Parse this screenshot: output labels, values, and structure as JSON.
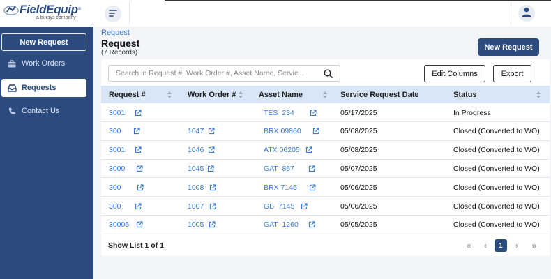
{
  "app": {
    "logo_text": "FieldEquip",
    "logo_reg": "®",
    "logo_sub": "a bursys company"
  },
  "sidebar": {
    "new_request_label": "New Request",
    "items": [
      {
        "label": "Work Orders",
        "icon": "briefcase-icon"
      },
      {
        "label": "Requests",
        "icon": "inbox-icon",
        "active": true
      },
      {
        "label": "Contact Us",
        "icon": "phone-icon"
      }
    ]
  },
  "header": {
    "breadcrumb": "Request",
    "title": "Request",
    "record_count": "(7 Records)",
    "new_request_label": "New Request"
  },
  "toolbar": {
    "search_placeholder": "Search in Request #, Work Order #, Asset Name, Servic...",
    "edit_columns_label": "Edit Columns",
    "export_label": "Export"
  },
  "table": {
    "columns": [
      "Request #",
      "Work Order #",
      "Asset Name",
      "Service Request Date",
      "Status"
    ],
    "rows": [
      {
        "request": "3001",
        "work_order": "",
        "asset": "TES  234",
        "date": "05/17/2025",
        "status": "In Progress"
      },
      {
        "request": "300",
        "work_order": "1047",
        "asset": "BRX 09860",
        "date": "05/08/2025",
        "status": "Closed (Converted to WO)"
      },
      {
        "request": "3001",
        "work_order": "1046",
        "asset": "ATX 06205",
        "date": "05/08/2025",
        "status": "Closed (Converted to WO)"
      },
      {
        "request": "3000",
        "work_order": "1045",
        "asset": "GAT  867",
        "date": "05/07/2025",
        "status": "Closed (Converted to WO)"
      },
      {
        "request": "300",
        "work_order": "1008",
        "asset": "BRX 7145",
        "date": "05/06/2025",
        "status": "Closed (Converted to WO)"
      },
      {
        "request": "300",
        "work_order": "1007",
        "asset": "GB  7145",
        "date": "05/06/2025",
        "status": "Closed (Converted to WO)"
      },
      {
        "request": "30005",
        "work_order": "1005",
        "asset": "GAT  1260",
        "date": "05/05/2025",
        "status": "Closed (Converted to WO)"
      }
    ]
  },
  "footer": {
    "show_list": "Show List 1 of 1",
    "current_page": "1"
  },
  "colors": {
    "brand": "#2b4a7e",
    "link": "#3a7bd5",
    "header_bg": "#d9e6f7"
  }
}
